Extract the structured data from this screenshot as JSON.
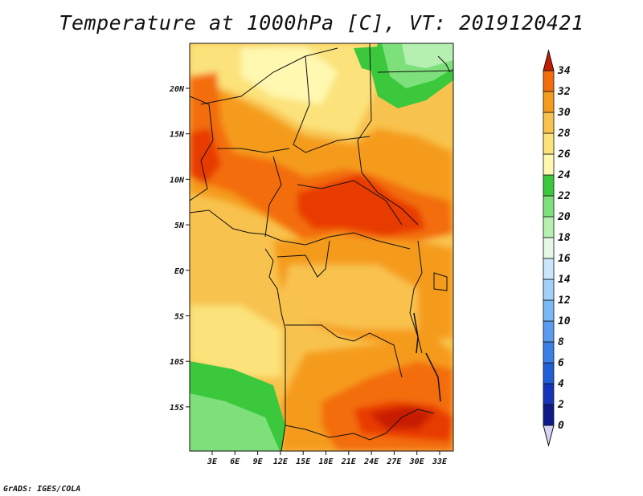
{
  "title": "Temperature at 1000hPa [C], VT: 2019120421",
  "credit": "GrADS: IGES/COLA",
  "map": {
    "lon_ticks": [
      "3E",
      "6E",
      "9E",
      "12E",
      "15E",
      "18E",
      "21E",
      "24E",
      "27E",
      "30E",
      "33E"
    ],
    "lat_ticks": [
      "20N",
      "15N",
      "10N",
      "5N",
      "EQ",
      "5S",
      "10S",
      "15S"
    ]
  },
  "colorbar": {
    "labels": [
      "0",
      "2",
      "4",
      "6",
      "8",
      "10",
      "12",
      "14",
      "16",
      "18",
      "20",
      "22",
      "24",
      "26",
      "28",
      "30",
      "32",
      "34"
    ],
    "colors": [
      "#0c1a8a",
      "#1535b8",
      "#1f5fd6",
      "#3a80e6",
      "#5a9bef",
      "#7ab7f5",
      "#a2d0f8",
      "#c9e6fb",
      "#e6f7e6",
      "#b6f0b0",
      "#7ee07a",
      "#3cc83c",
      "#fff8b0",
      "#fbe27a",
      "#f8c24e",
      "#f59b1e",
      "#f36d0c",
      "#e83a06",
      "#c81a00"
    ]
  },
  "regions": [
    {
      "name": "green-northeast",
      "color": "#3cc83c"
    },
    {
      "name": "light-green-northeast",
      "color": "#7ee07a"
    },
    {
      "name": "green-southwest",
      "color": "#3cc83c"
    },
    {
      "name": "light-green-southwest",
      "color": "#7ee07a"
    }
  ]
}
